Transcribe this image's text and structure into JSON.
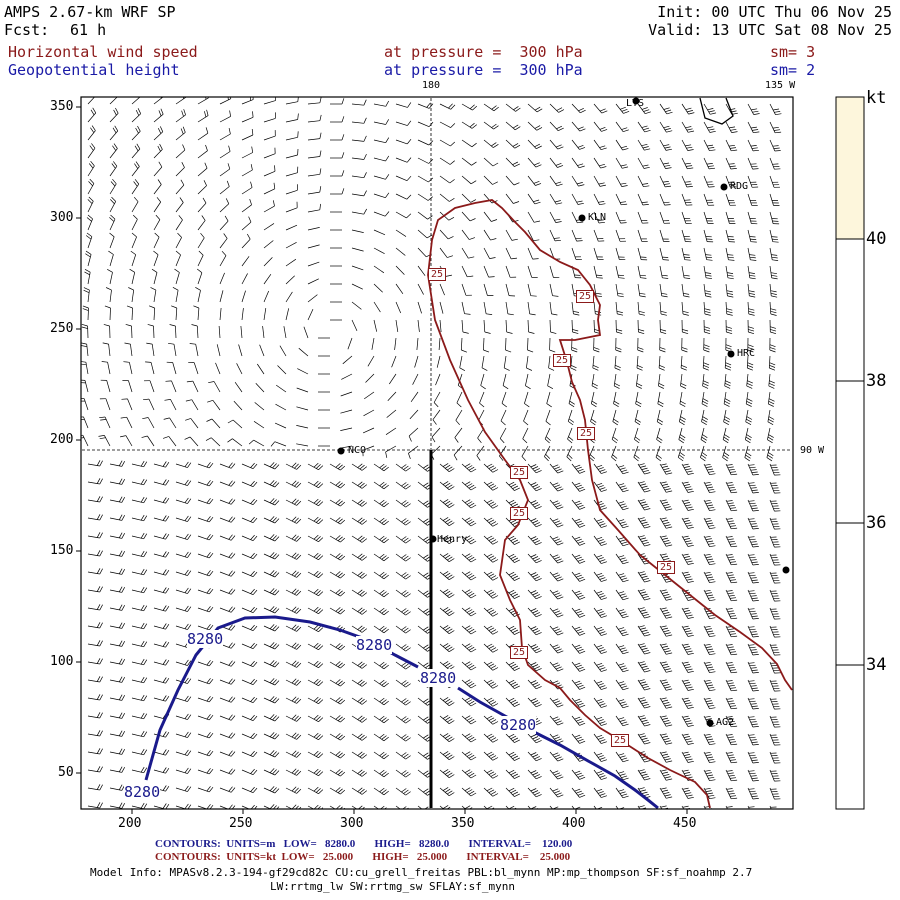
{
  "header": {
    "model": "AMPS 2.67-km WRF SP",
    "forecast_label": "Fcst:",
    "forecast_hours": "61 h",
    "init": "Init: 00 UTC Thu 06 Nov 25",
    "valid": "Valid: 13 UTC Sat 08 Nov 25",
    "field1_name": "Horizontal wind speed",
    "field1_level": "at pressure =  300 hPa",
    "field1_smooth": "sm= 3",
    "field2_name": "Geopotential height",
    "field2_level": "at pressure =  300 hPa",
    "field2_smooth": "sm= 2"
  },
  "map": {
    "x_ticks": [
      "200",
      "250",
      "300",
      "350",
      "400",
      "450"
    ],
    "y_ticks": [
      "350",
      "300",
      "250",
      "200",
      "150",
      "100",
      "50"
    ],
    "meridian_labels": {
      "lon180": "180",
      "lon135w": "135 W",
      "lon90w": "90 W"
    },
    "stations": [
      "LYS",
      "RDG",
      "KLN",
      "HRC",
      "NCO",
      "Henry",
      "AG2"
    ],
    "height_contour_labels": [
      "8280",
      "8280",
      "8280",
      "8280",
      "8280"
    ],
    "wind_contour_labels": [
      "25",
      "25",
      "25",
      "25",
      "25",
      "25",
      "25",
      "25"
    ],
    "colors": {
      "height_contour": "#1a1a8c",
      "wind_contour": "#8b1a1a",
      "shade_40": "#fdf6dc"
    }
  },
  "colorbar": {
    "unit": "kt",
    "ticks": [
      "40",
      "38",
      "36",
      "34"
    ]
  },
  "footer": {
    "contours1": "CONTOURS:  UNITS=m   LOW=   8280.0       HIGH=   8280.0       INTERVAL=    120.00",
    "contours2": "CONTOURS:  UNITS=kt  LOW=   25.000       HIGH=   25.000       INTERVAL=    25.000",
    "model_info": "Model Info: MPASv8.2.3-194-gf29cd82c CU:cu_grell_freitas PBL:bl_mynn MP:mp_thompson SF:sf_noahmp 2.7",
    "model_info2": "LW:rrtmg_lw SW:rrtmg_sw SFLAY:sf_mynn"
  }
}
